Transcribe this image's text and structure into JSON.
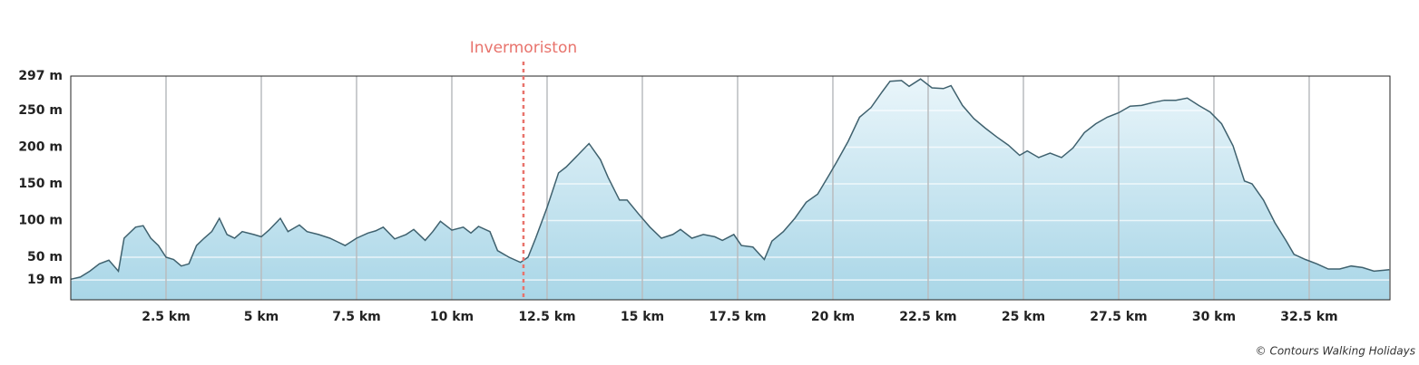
{
  "chart_data": {
    "type": "area",
    "x": [
      0,
      0.25,
      0.5,
      0.75,
      1.0,
      1.25,
      1.4,
      1.7,
      1.9,
      2.1,
      2.3,
      2.5,
      2.7,
      2.9,
      3.1,
      3.3,
      3.5,
      3.7,
      3.9,
      4.1,
      4.3,
      4.5,
      4.8,
      5.0,
      5.2,
      5.5,
      5.7,
      6.0,
      6.2,
      6.5,
      6.8,
      7.0,
      7.2,
      7.5,
      7.8,
      8.0,
      8.2,
      8.5,
      8.8,
      9.0,
      9.3,
      9.5,
      9.7,
      10.0,
      10.3,
      10.5,
      10.7,
      11.0,
      11.2,
      11.5,
      11.8,
      12.0,
      12.2,
      12.5,
      12.8,
      13.0,
      13.3,
      13.6,
      13.9,
      14.1,
      14.4,
      14.6,
      14.9,
      15.2,
      15.5,
      15.8,
      16.0,
      16.3,
      16.6,
      16.9,
      17.1,
      17.4,
      17.6,
      17.9,
      18.2,
      18.4,
      18.7,
      19.0,
      19.3,
      19.6,
      19.9,
      20.1,
      20.4,
      20.7,
      21.0,
      21.3,
      21.5,
      21.8,
      22.0,
      22.3,
      22.6,
      22.9,
      23.1,
      23.4,
      23.7,
      24.0,
      24.3,
      24.6,
      24.9,
      25.1,
      25.4,
      25.7,
      26.0,
      26.3,
      26.6,
      26.9,
      27.2,
      27.5,
      27.8,
      28.1,
      28.4,
      28.7,
      29.0,
      29.3,
      29.6,
      29.9,
      30.2,
      30.5,
      30.8,
      31.0,
      31.3,
      31.6,
      31.9,
      32.1,
      32.4,
      32.7,
      33.0,
      33.3,
      33.6,
      33.9,
      34.2,
      34.6
    ],
    "values": [
      20,
      23,
      31,
      41,
      46,
      31,
      76,
      91,
      93,
      76,
      66,
      50,
      47,
      38,
      41,
      66,
      76,
      85,
      103,
      81,
      76,
      85,
      81,
      78,
      87,
      103,
      85,
      94,
      85,
      81,
      76,
      71,
      66,
      76,
      83,
      86,
      91,
      75,
      81,
      88,
      73,
      85,
      99,
      87,
      91,
      83,
      92,
      85,
      59,
      50,
      43,
      50,
      76,
      118,
      165,
      173,
      189,
      205,
      183,
      159,
      128,
      128,
      109,
      91,
      76,
      81,
      88,
      76,
      81,
      78,
      73,
      81,
      66,
      64,
      47,
      72,
      85,
      103,
      125,
      136,
      162,
      180,
      208,
      241,
      254,
      276,
      290,
      291,
      283,
      293,
      281,
      280,
      284,
      257,
      239,
      226,
      214,
      203,
      189,
      195,
      186,
      192,
      186,
      199,
      220,
      232,
      241,
      247,
      256,
      257,
      261,
      264,
      264,
      267,
      257,
      248,
      232,
      202,
      154,
      150,
      128,
      97,
      72,
      54,
      47,
      41,
      34,
      34,
      38,
      36,
      31,
      33
    ],
    "color": "#3f616e",
    "fill_top": "#e9f5fa",
    "fill_bottom": "#a9d6e7",
    "xlim": [
      0,
      34.62
    ],
    "ylim": [
      -8,
      297
    ],
    "xticks": [
      {
        "value": 2.5,
        "label": "2.5 km"
      },
      {
        "value": 5,
        "label": "5 km"
      },
      {
        "value": 7.5,
        "label": "7.5 km"
      },
      {
        "value": 10,
        "label": "10 km"
      },
      {
        "value": 12.5,
        "label": "12.5 km"
      },
      {
        "value": 15,
        "label": "15 km"
      },
      {
        "value": 17.5,
        "label": "17.5 km"
      },
      {
        "value": 20,
        "label": "20 km"
      },
      {
        "value": 22.5,
        "label": "22.5 km"
      },
      {
        "value": 25,
        "label": "25 km"
      },
      {
        "value": 27.5,
        "label": "27.5 km"
      },
      {
        "value": 30,
        "label": "30 km"
      },
      {
        "value": 32.5,
        "label": "32.5 km"
      }
    ],
    "yticks": [
      {
        "value": 19,
        "label": "19 m"
      },
      {
        "value": 50,
        "label": "50 m"
      },
      {
        "value": 100,
        "label": "100 m"
      },
      {
        "value": 150,
        "label": "150 m"
      },
      {
        "value": 200,
        "label": "200 m"
      },
      {
        "value": 250,
        "label": "250 m"
      },
      {
        "value": 297,
        "label": "297 m"
      }
    ],
    "grid": true,
    "annotations": [
      {
        "x": 11.88,
        "label": "Invermoriston",
        "color": "#e8736c"
      }
    ],
    "credit": "© Contours Walking Holidays"
  }
}
